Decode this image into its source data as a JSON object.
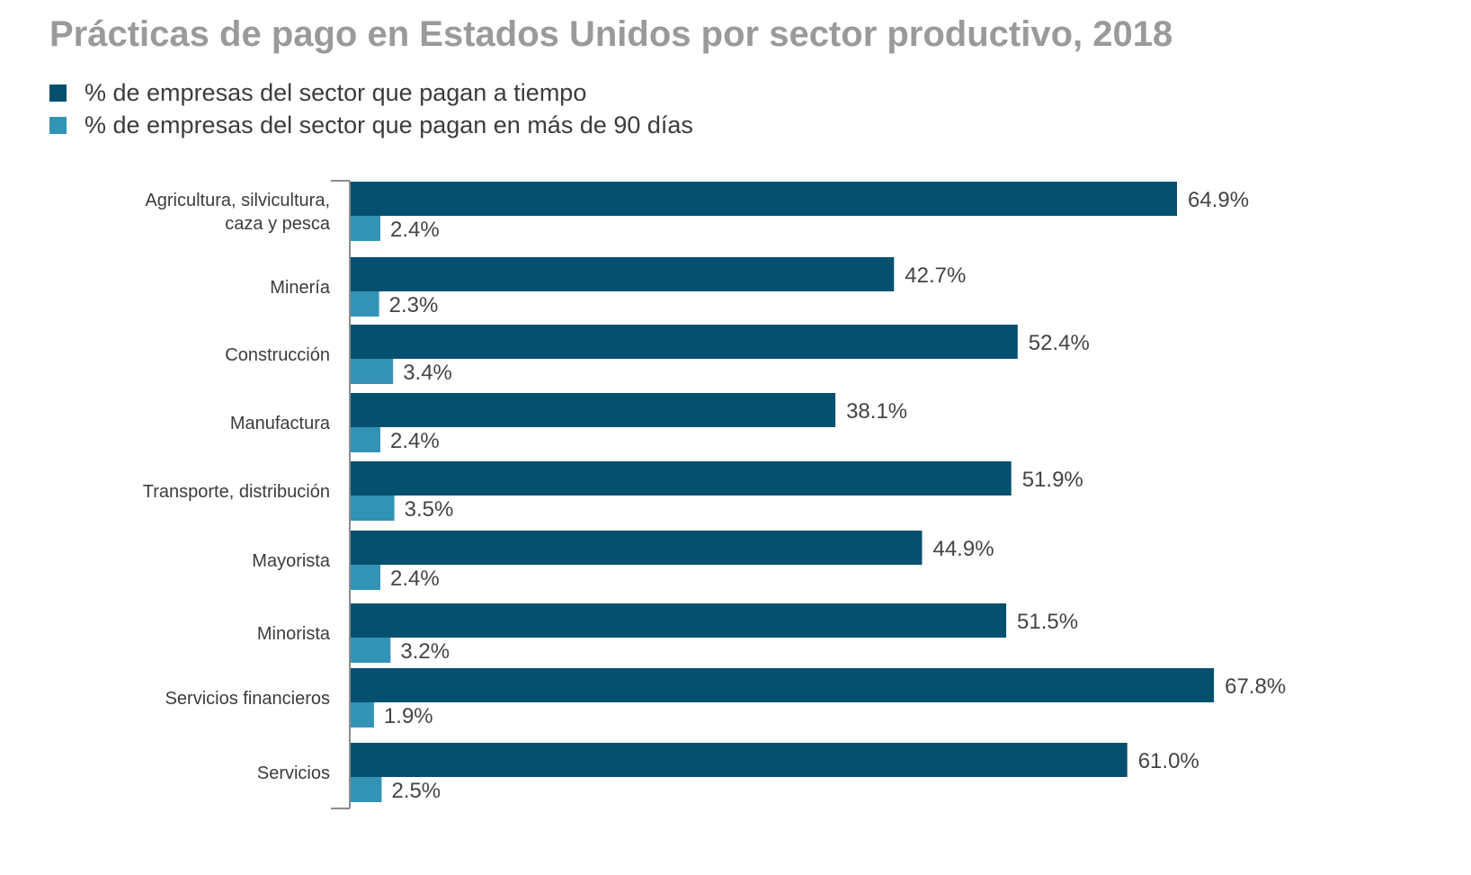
{
  "chart_data": {
    "type": "bar",
    "orientation": "horizontal",
    "title": "Prácticas de pago en Estados Unidos por sector productivo, 2018",
    "categories": [
      [
        "Agricultura, silvicultura,",
        "caza y pesca"
      ],
      [
        "Minería"
      ],
      [
        "Construcción"
      ],
      [
        "Manufactura"
      ],
      [
        "Transporte, distribución"
      ],
      [
        "Mayorista"
      ],
      [
        "Minorista"
      ],
      [
        "Servicios financieros"
      ],
      [
        "Servicios"
      ]
    ],
    "series": [
      {
        "name": "% de empresas del sector que pagan a tiempo",
        "color": "#04506e",
        "values": [
          64.9,
          42.7,
          52.4,
          38.1,
          51.9,
          44.9,
          51.5,
          67.8,
          61.0
        ],
        "labels": [
          "64.9%",
          "42.7%",
          "52.4%",
          "38.1%",
          "51.9%",
          "44.9%",
          "51.5%",
          "67.8%",
          "61.0%"
        ]
      },
      {
        "name": "% de empresas del sector que pagan en más de 90 días",
        "color": "#3393b5",
        "values": [
          2.4,
          2.3,
          3.4,
          2.4,
          3.5,
          2.4,
          3.2,
          1.9,
          2.5
        ],
        "labels": [
          "2.4%",
          "2.3%",
          "3.4%",
          "2.4%",
          "3.5%",
          "2.4%",
          "3.2%",
          "1.9%",
          "2.5%"
        ]
      }
    ],
    "xlim": [
      0,
      70
    ],
    "grid": false,
    "legend_position": "top-left"
  }
}
